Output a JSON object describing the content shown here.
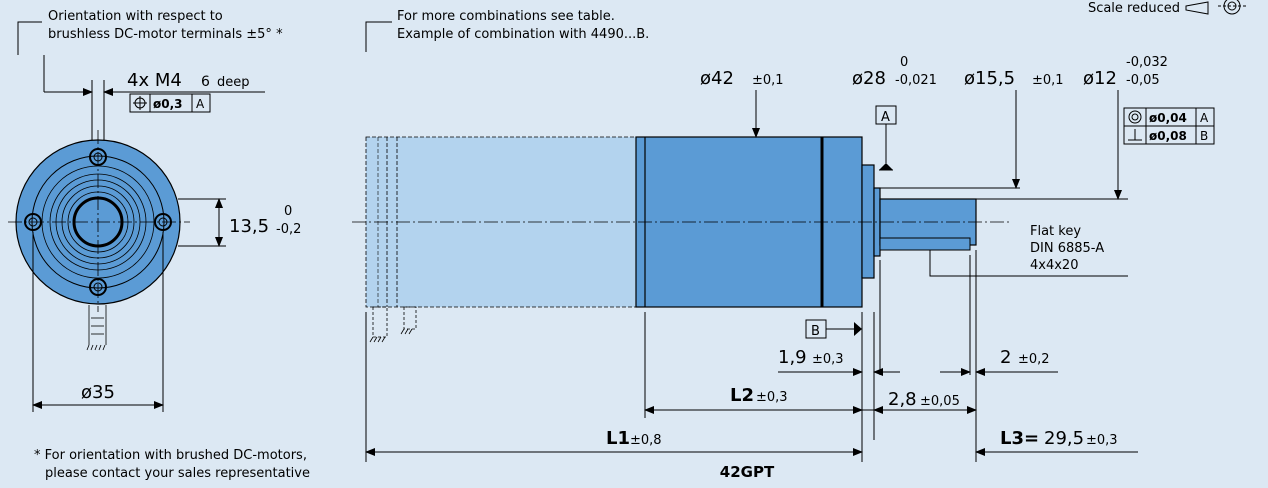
{
  "notes": {
    "orientation_line1": "Orientation with respect to",
    "orientation_line2": "brushless DC-motor terminals ±5° *",
    "combo_line1": "For more combinations see table.",
    "combo_line2": "Example of combination with 4490...B.",
    "scale": "Scale reduced",
    "footnote_line1": "* For orientation with brushed DC-motors,",
    "footnote_line2": "please contact your sales representative"
  },
  "end_view": {
    "thread": "4x M4",
    "thread_depth_value": "6",
    "thread_depth_word": "deep",
    "position_tolerance": "ø0,3",
    "datum_ref": "A",
    "height_value": "13,5",
    "height_tol_upper": "0",
    "height_tol_lower": "-0,2",
    "diameter": "ø35"
  },
  "side_view": {
    "d42": "ø42",
    "d42_tol": "±0,1",
    "d28": "ø28",
    "d28_tol_upper": "0",
    "d28_tol_lower": "-0,021",
    "d15": "ø15,5",
    "d15_tol": "±0,1",
    "d12": "ø12",
    "d12_tol_upper": "-0,032",
    "d12_tol_lower": "-0,05",
    "datum_a": "A",
    "datum_b": "B",
    "concentricity_value": "ø0,04",
    "concentricity_ref": "A",
    "perpendicularity_value": "ø0,08",
    "perpendicularity_ref": "B",
    "flat_key_line1": "Flat key",
    "flat_key_line2": "DIN 6885-A",
    "flat_key_line3": "4x4x20",
    "dim_1_9": "1,9",
    "dim_1_9_tol": "±0,3",
    "dim_2": "2",
    "dim_2_tol": "±0,2",
    "l2": "L2",
    "l2_tol": "±0,3",
    "dim_2_8": "2,8",
    "dim_2_8_tol": "±0,05",
    "l1": "L1",
    "l1_tol": "±0,8",
    "l3": "L3=",
    "l3_value": "29,5",
    "l3_tol": "±0,3",
    "model": "42GPT"
  },
  "colors": {
    "background": "#dce8f3",
    "body_solid": "#5b9bd5",
    "body_ghost": "#b3d3ee",
    "line": "#000000"
  }
}
